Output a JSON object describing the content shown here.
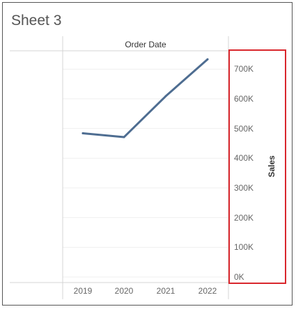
{
  "sheet": {
    "title": "Sheet 3"
  },
  "chart_data": {
    "type": "line",
    "title": "",
    "column_header": "Order Date",
    "xlabel": "",
    "ylabel": "Sales",
    "categories": [
      "2019",
      "2020",
      "2021",
      "2022"
    ],
    "series": [
      {
        "values": [
          484000,
          471000,
          609000,
          733000
        ],
        "color": "#4e6d91"
      }
    ],
    "ylim": [
      0,
      750000
    ],
    "y_ticks": [
      {
        "value": 0,
        "label": "0K"
      },
      {
        "value": 100000,
        "label": "100K"
      },
      {
        "value": 200000,
        "label": "200K"
      },
      {
        "value": 300000,
        "label": "300K"
      },
      {
        "value": 400000,
        "label": "400K"
      },
      {
        "value": 500000,
        "label": "500K"
      },
      {
        "value": 600000,
        "label": "600K"
      },
      {
        "value": 700000,
        "label": "700K"
      }
    ],
    "y_axis_position": "right",
    "grid": true
  },
  "annotation": {
    "highlight_color": "#d9262c"
  }
}
